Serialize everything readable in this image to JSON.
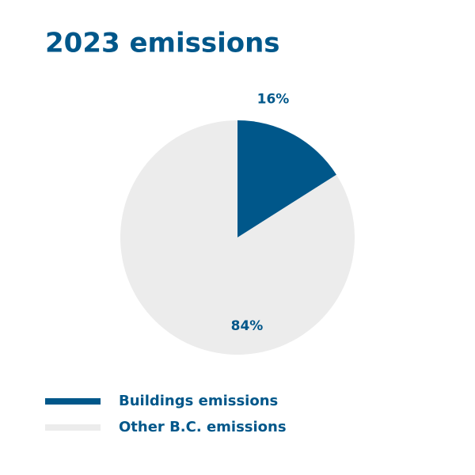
{
  "chart_data": {
    "type": "pie",
    "title": "2023 emissions",
    "categories": [
      "Buildings emissions",
      "Other B.C. emissions"
    ],
    "values": [
      16,
      84
    ],
    "value_labels": [
      "16%",
      "84%"
    ],
    "colors": [
      "#00578a",
      "#ececec"
    ],
    "legend": "bottom-left"
  }
}
